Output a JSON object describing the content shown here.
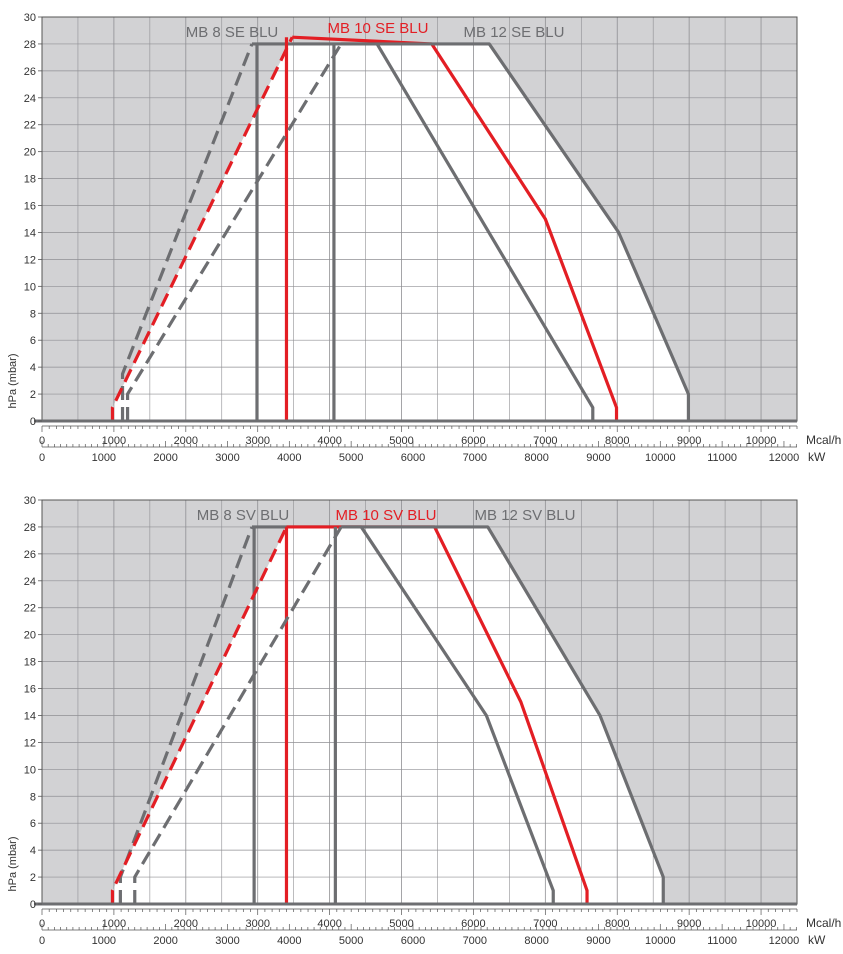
{
  "colors": {
    "background": "#d2d2d4",
    "envelope": "#ffffff",
    "grid": "#8f8f93",
    "gray_series": "#6d6e71",
    "red_series": "#e31e24",
    "axis": "#555555"
  },
  "chart_data": [
    {
      "type": "line",
      "title": "",
      "ylabel": "hPa (mbar)",
      "xlabel_primary": "Mcal/h",
      "xlabel_secondary": "kW",
      "ylim": [
        0,
        30
      ],
      "xlim": [
        0,
        10500
      ],
      "x2lim": [
        0,
        12211
      ],
      "y_ticks": [
        "0",
        "2",
        "4",
        "6",
        "8",
        "10",
        "12",
        "14",
        "16",
        "18",
        "20",
        "22",
        "24",
        "26",
        "28",
        "30"
      ],
      "x_ticks": [
        "0",
        "1000",
        "2000",
        "3000",
        "4000",
        "5000",
        "6000",
        "7000",
        "8000",
        "9000",
        "10000"
      ],
      "x2_ticks": [
        "0",
        "1000",
        "2000",
        "3000",
        "4000",
        "5000",
        "6000",
        "7000",
        "8000",
        "9000",
        "10000",
        "11000",
        "12000"
      ],
      "grid": true,
      "series": [
        {
          "name": "MB 8 SE BLU",
          "color": "gray",
          "dashed": [
            [
              1120,
              0
            ],
            [
              1120,
              3.5
            ],
            [
              2920,
              28
            ]
          ],
          "solid": [
            [
              2920,
              28
            ],
            [
              4660,
              28
            ],
            [
              7660,
              1
            ],
            [
              7660,
              0
            ]
          ],
          "vertical": [
            [
              2990,
              0
            ],
            [
              2990,
              28
            ]
          ]
        },
        {
          "name": "MB 10 SE BLU",
          "color": "red",
          "dashed": [
            [
              980,
              0
            ],
            [
              980,
              1
            ],
            [
              3480,
              28.5
            ]
          ],
          "solid": [
            [
              3480,
              28.5
            ],
            [
              5420,
              28
            ],
            [
              7000,
              15
            ],
            [
              7990,
              1
            ],
            [
              7990,
              0
            ]
          ],
          "vertical": [
            [
              3400,
              0
            ],
            [
              3400,
              28.5
            ]
          ]
        },
        {
          "name": "MB 12 SE BLU",
          "color": "gray",
          "dashed": [
            [
              1190,
              0
            ],
            [
              1190,
              2
            ],
            [
              4160,
              28
            ]
          ],
          "solid": [
            [
              4160,
              28
            ],
            [
              6220,
              28
            ],
            [
              8020,
              14
            ],
            [
              8990,
              2
            ],
            [
              8990,
              0
            ]
          ],
          "vertical": [
            [
              4060,
              0
            ],
            [
              4060,
              28
            ]
          ]
        }
      ]
    },
    {
      "type": "line",
      "title": "",
      "ylabel": "hPa (mbar)",
      "xlabel_primary": "Mcal/h",
      "xlabel_secondary": "kW",
      "ylim": [
        0,
        30
      ],
      "xlim": [
        0,
        10500
      ],
      "x2lim": [
        0,
        12211
      ],
      "y_ticks": [
        "0",
        "2",
        "4",
        "6",
        "8",
        "10",
        "12",
        "14",
        "16",
        "18",
        "20",
        "22",
        "24",
        "26",
        "28",
        "30"
      ],
      "x_ticks": [
        "0",
        "1000",
        "2000",
        "3000",
        "4000",
        "5000",
        "6000",
        "7000",
        "8000",
        "9000",
        "10000"
      ],
      "x2_ticks": [
        "0",
        "1000",
        "2000",
        "3000",
        "4000",
        "5000",
        "6000",
        "7000",
        "8000",
        "9000",
        "10000",
        "11000",
        "12000"
      ],
      "grid": true,
      "series": [
        {
          "name": "MB 8 SV BLU",
          "color": "gray",
          "dashed": [
            [
              1090,
              0
            ],
            [
              1090,
              2
            ],
            [
              2920,
              28
            ]
          ],
          "solid": [
            [
              2920,
              28
            ],
            [
              4440,
              28
            ],
            [
              6180,
              14
            ],
            [
              7110,
              1
            ],
            [
              7110,
              0
            ]
          ],
          "vertical": [
            [
              2950,
              0
            ],
            [
              2950,
              28
            ]
          ]
        },
        {
          "name": "MB 10 SV BLU",
          "color": "red",
          "dashed": [
            [
              980,
              0
            ],
            [
              980,
              1
            ],
            [
              3400,
              28
            ]
          ],
          "solid": [
            [
              3400,
              28
            ],
            [
              5460,
              28
            ],
            [
              6660,
              15
            ],
            [
              7580,
              1
            ],
            [
              7580,
              0
            ]
          ],
          "vertical": [
            [
              3400,
              0
            ],
            [
              3400,
              28
            ]
          ]
        },
        {
          "name": "MB 12 SV BLU",
          "color": "gray",
          "dashed": [
            [
              1290,
              0
            ],
            [
              1290,
              2
            ],
            [
              4160,
              28
            ]
          ],
          "solid": [
            [
              4160,
              28
            ],
            [
              6200,
              28
            ],
            [
              7760,
              14
            ],
            [
              8640,
              2
            ],
            [
              8640,
              0
            ]
          ],
          "vertical": [
            [
              4080,
              0
            ],
            [
              4080,
              28
            ]
          ]
        }
      ]
    }
  ]
}
